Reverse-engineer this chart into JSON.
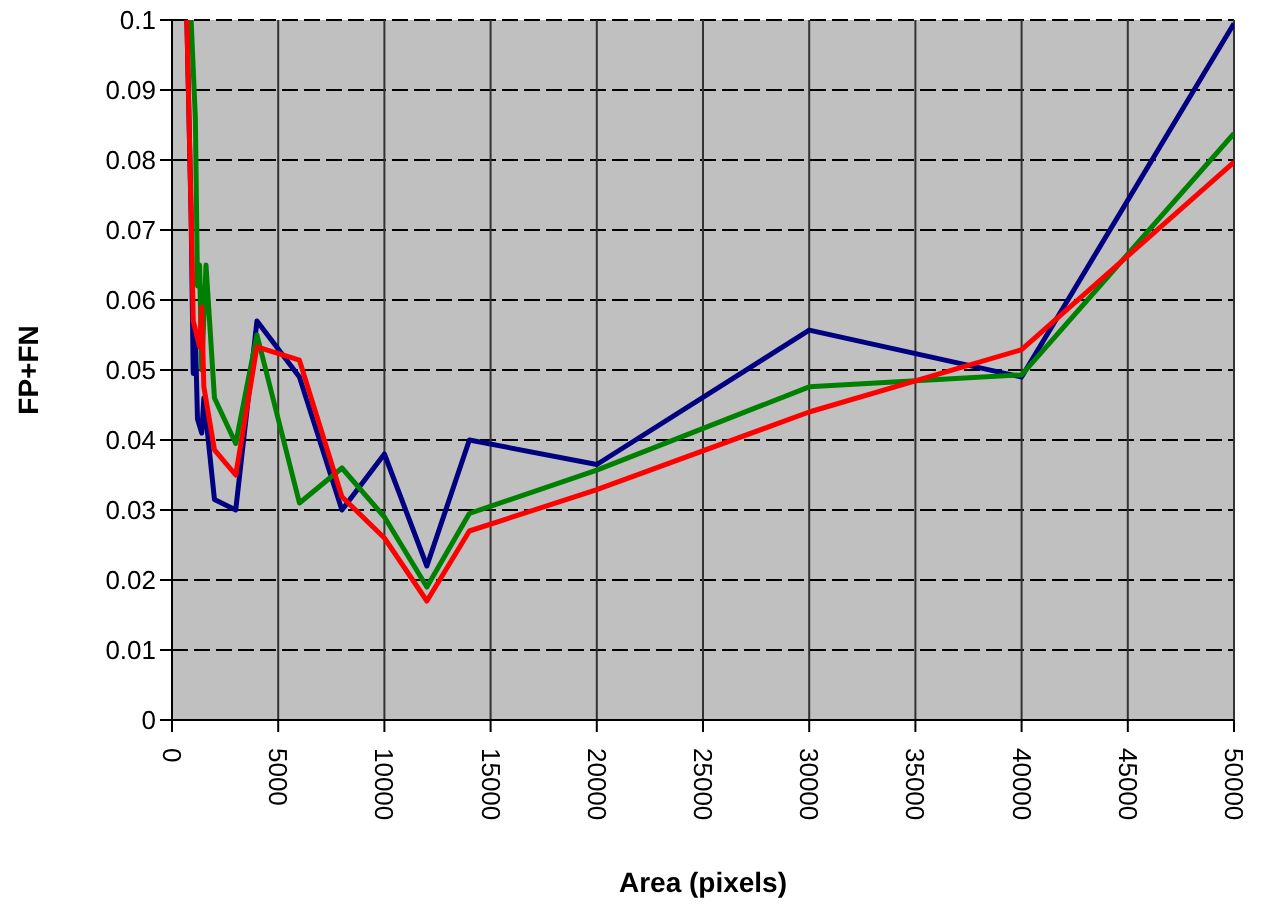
{
  "chart_data": {
    "type": "line",
    "xlabel": "Area (pixels)",
    "ylabel": "FP+FN",
    "xlim": [
      0,
      50000
    ],
    "xticks": [
      0,
      5000,
      10000,
      15000,
      20000,
      25000,
      30000,
      35000,
      40000,
      45000,
      50000
    ],
    "ylim": [
      0,
      0.1
    ],
    "yticks": [
      0,
      0.01,
      0.02,
      0.03,
      0.04,
      0.05,
      0.06,
      0.07,
      0.08,
      0.09,
      0.1
    ],
    "grid": true,
    "marker": "none",
    "line_style": "solid",
    "series": [
      {
        "color": "#000080",
        "x": [
          700,
          800,
          900,
          1000,
          1100,
          1200,
          1400,
          1500,
          2000,
          3000,
          4000,
          6000,
          8000,
          10000,
          12000,
          14000,
          20000,
          30000,
          40000,
          50000
        ],
        "values": [
          0.1,
          0.086,
          0.072,
          0.0495,
          0.055,
          0.043,
          0.041,
          0.046,
          0.0315,
          0.03,
          0.057,
          0.049,
          0.03,
          0.038,
          0.022,
          0.04,
          0.0365,
          0.0557,
          0.049,
          0.0995
        ]
      },
      {
        "color": "#008000",
        "x": [
          900,
          1100,
          1200,
          1300,
          1400,
          1600,
          2000,
          3000,
          4000,
          6000,
          8000,
          10000,
          12000,
          14000,
          20000,
          30000,
          40000,
          50000
        ],
        "values": [
          0.1,
          0.086,
          0.062,
          0.065,
          0.05,
          0.065,
          0.046,
          0.0395,
          0.055,
          0.031,
          0.036,
          0.029,
          0.019,
          0.0295,
          0.0357,
          0.0476,
          0.0493,
          0.0838
        ]
      },
      {
        "color": "#ff0000",
        "x": [
          700,
          900,
          1000,
          1300,
          1400,
          1500,
          2000,
          3000,
          4000,
          6000,
          8000,
          10000,
          12000,
          14000,
          20000,
          30000,
          40000,
          50000
        ],
        "values": [
          0.1,
          0.0724,
          0.057,
          0.0533,
          0.059,
          0.0476,
          0.0386,
          0.035,
          0.0533,
          0.0514,
          0.0319,
          0.026,
          0.017,
          0.027,
          0.0329,
          0.044,
          0.0529,
          0.0797
        ]
      }
    ]
  }
}
